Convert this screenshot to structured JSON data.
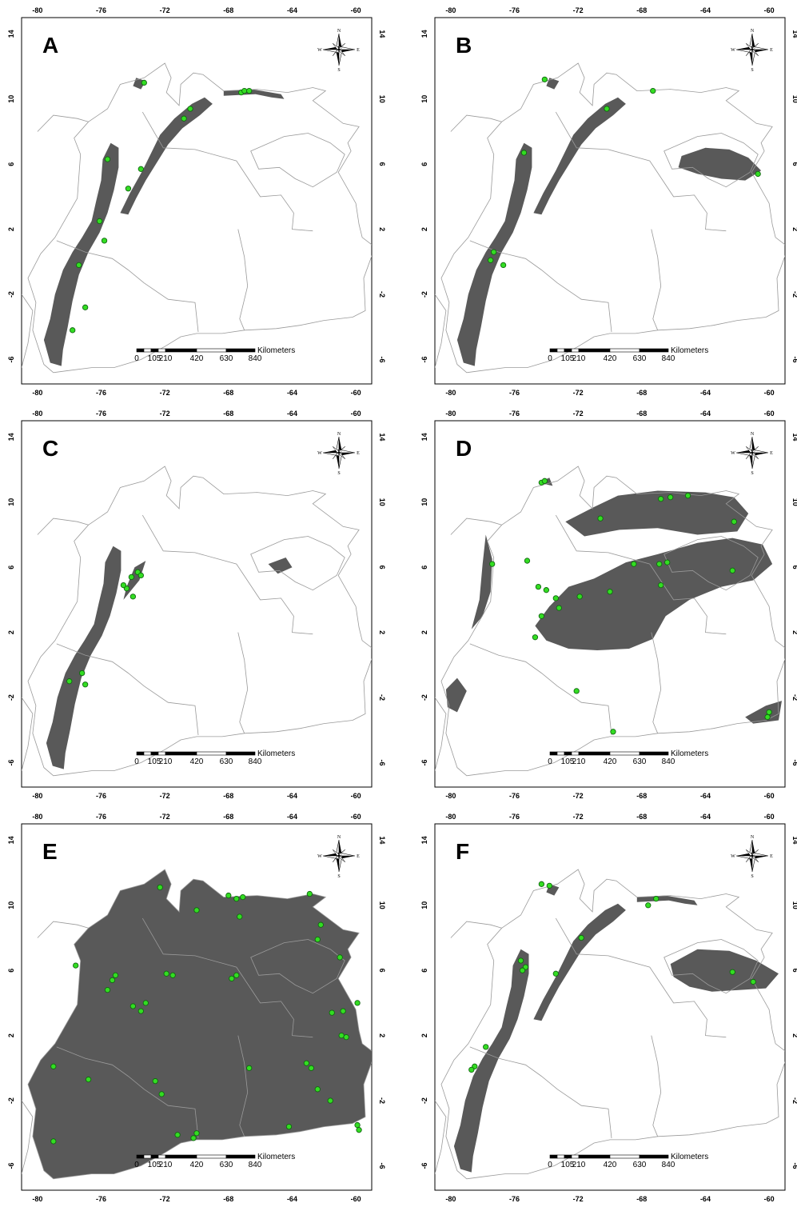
{
  "scale_bar": {
    "ticks": [
      "0",
      "105",
      "210",
      "420",
      "630",
      "840"
    ],
    "unit": "Kilometers"
  },
  "compass": {
    "n": "N",
    "s": "S",
    "e": "E",
    "w": "W"
  },
  "colors": {
    "habitat": "#595959",
    "outline": "#9a9a9a",
    "point_fill": "#33dd22",
    "point_stroke": "#116611"
  },
  "panels": [
    {
      "label": "A",
      "lon_ticks": [
        "-80",
        "-76",
        "-72",
        "-68",
        "-64",
        "-60"
      ],
      "lat_ticks": [
        "14",
        "10",
        "6",
        "2",
        "-2",
        "-6"
      ],
      "habitat_pattern": "andes",
      "occurrences": [
        [
          -73.3,
          11.0
        ],
        [
          -67.2,
          10.4
        ],
        [
          -67.0,
          10.5
        ],
        [
          -66.7,
          10.5
        ],
        [
          -70.4,
          9.4
        ],
        [
          -70.8,
          8.8
        ],
        [
          -75.6,
          6.3
        ],
        [
          -73.5,
          5.7
        ],
        [
          -74.3,
          4.5
        ],
        [
          -76.1,
          2.5
        ],
        [
          -75.8,
          1.3
        ],
        [
          -77.4,
          -0.2
        ],
        [
          -77.0,
          -2.8
        ],
        [
          -77.8,
          -4.2
        ]
      ]
    },
    {
      "label": "B",
      "lon_ticks": [
        "-80",
        "-76",
        "-72",
        "-68",
        "-64",
        "-60"
      ],
      "lat_ticks": [
        "14",
        "10",
        "6",
        "2",
        "-2",
        "-6"
      ],
      "habitat_pattern": "andes-guiana",
      "occurrences": [
        [
          -74.1,
          11.2
        ],
        [
          -67.3,
          10.5
        ],
        [
          -70.2,
          9.4
        ],
        [
          -75.4,
          6.7
        ],
        [
          -77.3,
          0.6
        ],
        [
          -77.5,
          0.1
        ],
        [
          -76.7,
          -0.2
        ],
        [
          -60.7,
          5.4
        ]
      ]
    },
    {
      "label": "C",
      "lon_ticks": [
        "-80",
        "-76",
        "-72",
        "-68",
        "-64",
        "-60"
      ],
      "lat_ticks": [
        "14",
        "10",
        "6",
        "2",
        "-2",
        "-6"
      ],
      "habitat_pattern": "andes-sparse",
      "occurrences": [
        [
          -74.1,
          5.4
        ],
        [
          -73.7,
          5.7
        ],
        [
          -73.5,
          5.5
        ],
        [
          -74.4,
          4.7
        ],
        [
          -74.6,
          4.9
        ],
        [
          -74.0,
          4.2
        ],
        [
          -78.0,
          -1.0
        ],
        [
          -77.2,
          -0.5
        ],
        [
          -77.0,
          -1.2
        ]
      ]
    },
    {
      "label": "D",
      "lon_ticks": [
        "-80",
        "-76",
        "-72",
        "-68",
        "-64",
        "-60"
      ],
      "lat_ticks": [
        "14",
        "10",
        "6",
        "2",
        "-2",
        "-6"
      ],
      "habitat_pattern": "llanos-orinoco",
      "occurrences": [
        [
          -74.3,
          11.2
        ],
        [
          -74.1,
          11.3
        ],
        [
          -66.8,
          10.2
        ],
        [
          -66.2,
          10.3
        ],
        [
          -65.1,
          10.4
        ],
        [
          -62.2,
          8.8
        ],
        [
          -70.6,
          9.0
        ],
        [
          -77.4,
          6.2
        ],
        [
          -75.2,
          6.4
        ],
        [
          -66.9,
          6.2
        ],
        [
          -66.4,
          6.3
        ],
        [
          -68.5,
          6.2
        ],
        [
          -74.0,
          4.6
        ],
        [
          -74.5,
          4.8
        ],
        [
          -73.4,
          4.1
        ],
        [
          -71.9,
          4.2
        ],
        [
          -70.0,
          4.5
        ],
        [
          -66.8,
          4.9
        ],
        [
          -73.2,
          3.5
        ],
        [
          -74.3,
          3.0
        ],
        [
          -74.7,
          1.7
        ],
        [
          -72.1,
          -1.6
        ],
        [
          -69.8,
          -4.1
        ],
        [
          -60.0,
          -2.9
        ],
        [
          -60.1,
          -3.2
        ],
        [
          -62.3,
          5.8
        ]
      ]
    },
    {
      "label": "E",
      "lon_ticks": [
        "-80",
        "-76",
        "-72",
        "-68",
        "-64",
        "-60"
      ],
      "lat_ticks": [
        "14",
        "10",
        "6",
        "2",
        "-2",
        "-6"
      ],
      "habitat_pattern": "widespread",
      "occurrences": [
        [
          -72.3,
          11.1
        ],
        [
          -68.0,
          10.6
        ],
        [
          -67.5,
          10.4
        ],
        [
          -67.1,
          10.5
        ],
        [
          -62.9,
          10.7
        ],
        [
          -70.0,
          9.7
        ],
        [
          -67.3,
          9.3
        ],
        [
          -62.2,
          8.8
        ],
        [
          -62.4,
          7.9
        ],
        [
          -61.0,
          6.8
        ],
        [
          -77.6,
          6.3
        ],
        [
          -75.1,
          5.7
        ],
        [
          -75.3,
          5.4
        ],
        [
          -71.9,
          5.8
        ],
        [
          -71.5,
          5.7
        ],
        [
          -67.8,
          5.5
        ],
        [
          -67.5,
          5.7
        ],
        [
          -75.6,
          4.8
        ],
        [
          -74.0,
          3.8
        ],
        [
          -73.2,
          4.0
        ],
        [
          -73.5,
          3.5
        ],
        [
          -61.5,
          3.4
        ],
        [
          -60.8,
          3.5
        ],
        [
          -60.9,
          2.0
        ],
        [
          -60.6,
          1.9
        ],
        [
          -59.9,
          4.0
        ],
        [
          -79.0,
          0.1
        ],
        [
          -76.8,
          -0.7
        ],
        [
          -72.6,
          -0.8
        ],
        [
          -66.7,
          0.0
        ],
        [
          -63.1,
          0.3
        ],
        [
          -62.8,
          0.0
        ],
        [
          -72.2,
          -1.6
        ],
        [
          -62.4,
          -1.3
        ],
        [
          -61.6,
          -2.0
        ],
        [
          -64.2,
          -3.6
        ],
        [
          -70.0,
          -4.0
        ],
        [
          -70.2,
          -4.3
        ],
        [
          -71.2,
          -4.1
        ],
        [
          -79.0,
          -4.5
        ],
        [
          -59.9,
          -3.5
        ],
        [
          -59.8,
          -3.8
        ]
      ]
    },
    {
      "label": "F",
      "lon_ticks": [
        "-80",
        "-76",
        "-72",
        "-68",
        "-64",
        "-60"
      ],
      "lat_ticks": [
        "14",
        "10",
        "6",
        "2",
        "-2",
        "-6"
      ],
      "habitat_pattern": "andes-guiana-broad",
      "occurrences": [
        [
          -74.3,
          11.3
        ],
        [
          -73.8,
          11.2
        ],
        [
          -67.6,
          10.0
        ],
        [
          -67.1,
          10.4
        ],
        [
          -71.8,
          8.0
        ],
        [
          -75.6,
          6.6
        ],
        [
          -75.3,
          6.2
        ],
        [
          -75.5,
          6.0
        ],
        [
          -73.4,
          5.8
        ],
        [
          -62.3,
          5.9
        ],
        [
          -61.0,
          5.3
        ],
        [
          -77.8,
          1.3
        ],
        [
          -78.5,
          0.1
        ],
        [
          -78.7,
          -0.1
        ]
      ]
    }
  ]
}
